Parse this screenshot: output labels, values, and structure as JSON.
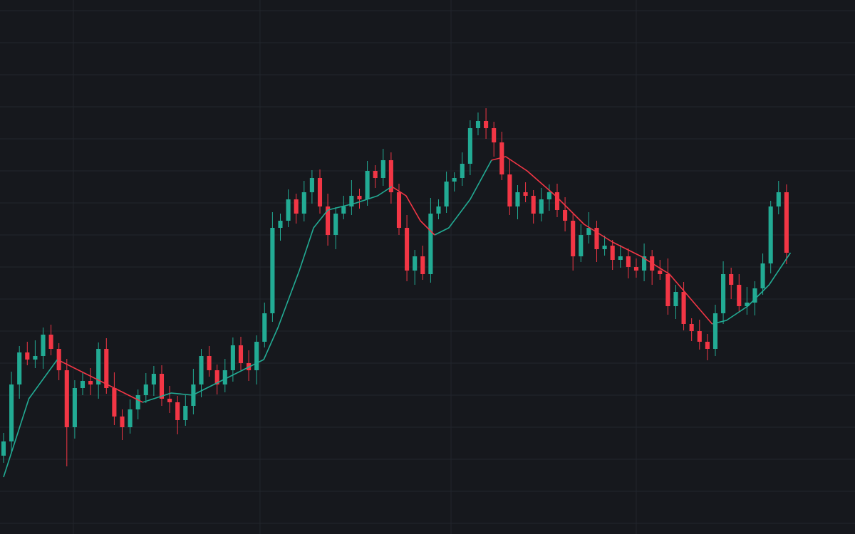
{
  "chart_data": {
    "type": "candlestick",
    "up_color": "#22ab94",
    "down_color": "#f23645",
    "background": "#16181d",
    "grid_color": "#22262d",
    "grid": true,
    "xlim": [
      -0.45,
      107.66
    ],
    "ylim": [
      0,
      750
    ],
    "xticks": [
      8.83,
      32.43,
      56.58,
      80
    ],
    "yticks": [
      15,
      60,
      105,
      150,
      195,
      240,
      285,
      330,
      375,
      420,
      465,
      510,
      555,
      600,
      645,
      690,
      735
    ],
    "x": [
      0,
      1,
      2,
      3,
      4,
      5,
      6,
      7,
      8,
      9,
      10,
      11,
      12,
      13,
      14,
      15,
      16,
      17,
      18,
      19,
      20,
      21,
      22,
      23,
      24,
      25,
      26,
      27,
      28,
      29,
      30,
      31,
      32,
      33,
      34,
      35,
      36,
      37,
      38,
      39,
      40,
      41,
      42,
      43,
      44,
      45,
      46,
      47,
      48,
      49,
      50,
      51,
      52,
      53,
      54,
      55,
      56,
      57,
      58,
      59,
      60,
      61,
      62,
      63,
      64,
      65,
      66,
      67,
      68,
      69,
      70,
      71,
      72,
      73,
      74,
      75,
      76,
      77,
      78,
      79,
      80,
      81,
      82,
      83,
      84,
      85,
      86,
      87,
      88,
      89,
      90,
      91,
      92,
      93,
      94,
      95,
      96,
      97,
      98,
      99
    ],
    "open": [
      110,
      130,
      210,
      255,
      245,
      250,
      280,
      260,
      230,
      150,
      205,
      215,
      210,
      260,
      205,
      165,
      150,
      175,
      195,
      210,
      225,
      190,
      185,
      160,
      180,
      210,
      250,
      230,
      210,
      230,
      265,
      240,
      230,
      270,
      310,
      430,
      440,
      470,
      450,
      480,
      500,
      460,
      420,
      450,
      460,
      475,
      470,
      510,
      500,
      525,
      480,
      430,
      370,
      390,
      365,
      450,
      460,
      495,
      500,
      520,
      570,
      580,
      570,
      550,
      505,
      460,
      480,
      475,
      450,
      470,
      480,
      455,
      440,
      390,
      420,
      430,
      400,
      405,
      385,
      390,
      375,
      370,
      390,
      370,
      365,
      320,
      340,
      295,
      285,
      270,
      260,
      310,
      365,
      350,
      320,
      325,
      345,
      380,
      460,
      480
    ],
    "high": [
      142,
      228,
      264,
      270,
      272,
      290,
      294,
      268,
      246,
      216,
      227,
      233,
      269,
      275,
      227,
      175,
      189,
      203,
      226,
      236,
      237,
      208,
      194,
      195,
      232,
      260,
      264,
      238,
      246,
      276,
      277,
      258,
      279,
      325,
      452,
      450,
      484,
      478,
      496,
      511,
      512,
      478,
      459,
      475,
      497,
      485,
      524,
      518,
      541,
      536,
      492,
      448,
      399,
      405,
      472,
      470,
      509,
      508,
      536,
      581,
      592,
      598,
      579,
      565,
      527,
      490,
      494,
      483,
      486,
      491,
      492,
      473,
      449,
      435,
      452,
      440,
      419,
      413,
      406,
      401,
      387,
      408,
      399,
      385,
      387,
      350,
      354,
      303,
      301,
      281,
      322,
      383,
      374,
      365,
      347,
      355,
      394,
      468,
      496,
      491
    ],
    "low": [
      100,
      115,
      190,
      237,
      233,
      232,
      251,
      216,
      95,
      134,
      195,
      195,
      190,
      197,
      153,
      132,
      141,
      161,
      184,
      194,
      180,
      170,
      140,
      152,
      168,
      192,
      221,
      196,
      199,
      214,
      230,
      215,
      210,
      262,
      298,
      412,
      431,
      436,
      439,
      464,
      450,
      405,
      400,
      442,
      448,
      457,
      461,
      486,
      489,
      464,
      420,
      355,
      350,
      357,
      353,
      442,
      451,
      481,
      489,
      504,
      560,
      555,
      530,
      497,
      448,
      442,
      466,
      436,
      439,
      454,
      445,
      425,
      370,
      382,
      408,
      382,
      391,
      371,
      374,
      359,
      360,
      355,
      350,
      357,
      308,
      302,
      286,
      271,
      259,
      244,
      250,
      295,
      330,
      312,
      308,
      307,
      336,
      366,
      449,
      379
    ],
    "close": [
      130,
      210,
      255,
      245,
      250,
      280,
      260,
      230,
      150,
      205,
      215,
      210,
      260,
      205,
      165,
      150,
      175,
      195,
      210,
      225,
      190,
      185,
      160,
      180,
      210,
      250,
      230,
      210,
      230,
      265,
      240,
      230,
      270,
      310,
      430,
      440,
      470,
      450,
      480,
      500,
      460,
      420,
      450,
      460,
      475,
      470,
      510,
      500,
      525,
      480,
      430,
      370,
      390,
      365,
      450,
      460,
      495,
      500,
      520,
      570,
      580,
      570,
      550,
      505,
      460,
      480,
      475,
      450,
      470,
      480,
      455,
      440,
      390,
      420,
      430,
      400,
      405,
      385,
      390,
      375,
      370,
      390,
      370,
      365,
      320,
      340,
      295,
      285,
      270,
      260,
      310,
      365,
      350,
      320,
      325,
      345,
      380,
      460,
      480,
      395
    ],
    "ma_x": [
      0,
      3.2,
      6.8,
      10.4,
      14,
      17.6,
      21.2,
      23.9,
      26.6,
      30.2,
      32.9,
      34.7,
      37.4,
      39.2,
      41,
      44.6,
      47.3,
      49.1,
      50.9,
      52.7,
      54.5,
      56.3,
      59,
      61.7,
      63.5,
      66.2,
      69.8,
      73.4,
      77,
      80.6,
      84.2,
      86.9,
      89.6,
      91.4,
      94.1,
      96.8,
      99.5
    ],
    "ma_lines": [
      {
        "color": "#22ab94",
        "values": [
          80,
          190,
          245,
          null,
          null,
          185,
          198,
          195,
          210,
          230,
          245,
          290,
          370,
          430,
          455,
          465,
          475,
          488,
          null,
          null,
          420,
          430,
          470,
          525,
          null,
          null,
          null,
          null,
          null,
          null,
          null,
          null,
          295,
          300,
          320,
          350,
          395
        ]
      },
      {
        "color": "#f23645",
        "values": [
          null,
          null,
          245,
          225,
          205,
          185,
          null,
          null,
          null,
          null,
          null,
          null,
          null,
          null,
          null,
          null,
          null,
          488,
          475,
          440,
          420,
          null,
          null,
          525,
          530,
          510,
          475,
          435,
          410,
          390,
          365,
          330,
          295,
          null,
          null,
          null,
          null
        ]
      }
    ]
  }
}
